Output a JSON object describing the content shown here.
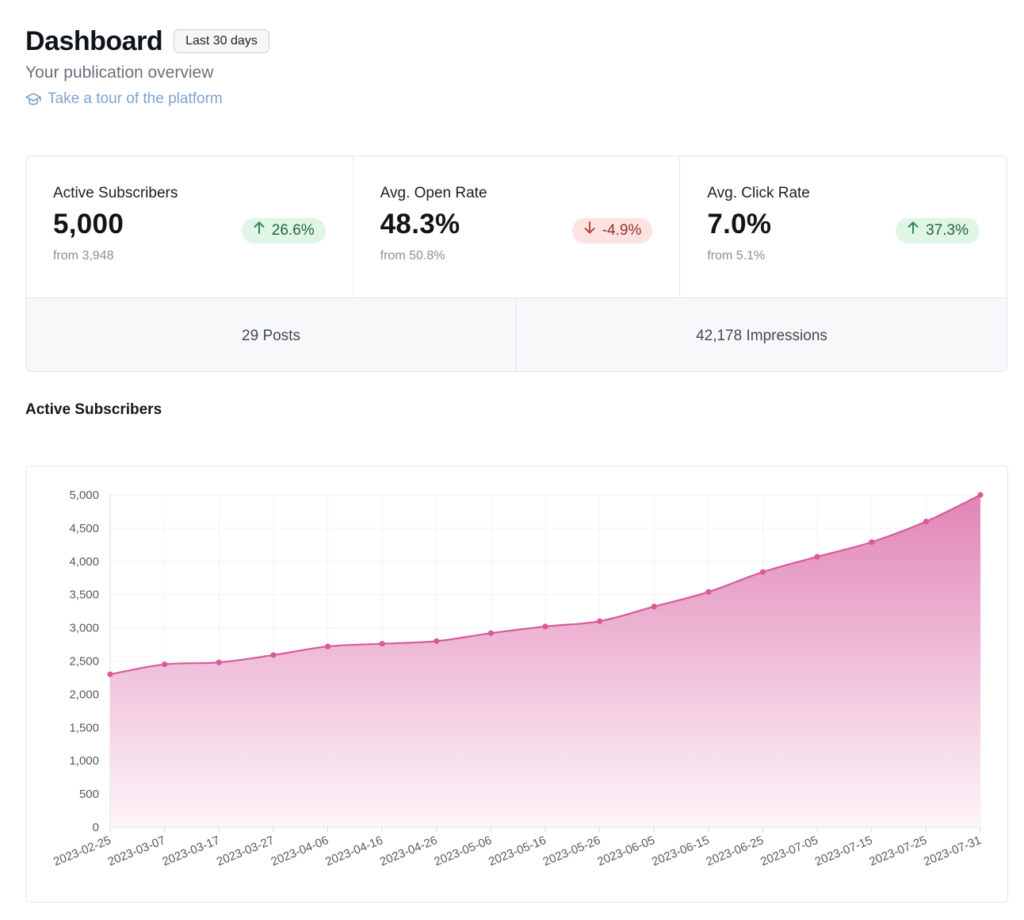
{
  "header": {
    "title": "Dashboard",
    "range_badge": "Last 30 days",
    "subtitle": "Your publication overview",
    "tour_link": "Take a tour of the platform",
    "tour_icon": "graduation-cap-icon"
  },
  "stats": [
    {
      "label": "Active Subscribers",
      "value": "5,000",
      "change": "26.6%",
      "direction": "up",
      "from": "from 3,948"
    },
    {
      "label": "Avg. Open Rate",
      "value": "48.3%",
      "change": "-4.9%",
      "direction": "down",
      "from": "from 50.8%"
    },
    {
      "label": "Avg. Click Rate",
      "value": "7.0%",
      "change": "37.3%",
      "direction": "up",
      "from": "from 5.1%"
    }
  ],
  "totals": {
    "posts": "29 Posts",
    "impressions": "42,178 Impressions"
  },
  "colors": {
    "up_bg": "#dff5e5",
    "up_text": "#22643a",
    "down_bg": "#fbe3e1",
    "down_text": "#9c3028",
    "series": "#d85a9a"
  },
  "section": {
    "chart_title": "Active Subscribers"
  },
  "chart_data": {
    "type": "area",
    "title": "",
    "xlabel": "",
    "ylabel": "",
    "ylim": [
      0,
      5000
    ],
    "yticks": [
      0,
      500,
      1000,
      1500,
      2000,
      2500,
      3000,
      3500,
      4000,
      4500,
      5000
    ],
    "ytick_labels": [
      "0",
      "500",
      "1,000",
      "1,500",
      "2,000",
      "2,500",
      "3,000",
      "3,500",
      "4,000",
      "4,500",
      "5,000"
    ],
    "x": [
      "2023-02-25",
      "2023-03-07",
      "2023-03-17",
      "2023-03-27",
      "2023-04-06",
      "2023-04-16",
      "2023-04-26",
      "2023-05-06",
      "2023-05-16",
      "2023-05-26",
      "2023-06-05",
      "2023-06-15",
      "2023-06-25",
      "2023-07-05",
      "2023-07-15",
      "2023-07-25",
      "2023-07-31"
    ],
    "series": [
      {
        "values": [
          2300,
          2450,
          2480,
          2590,
          2720,
          2760,
          2800,
          2920,
          3020,
          3100,
          3320,
          3540,
          3840,
          4070,
          4290,
          4600,
          5000
        ]
      }
    ],
    "grid": true,
    "legend": "none"
  }
}
